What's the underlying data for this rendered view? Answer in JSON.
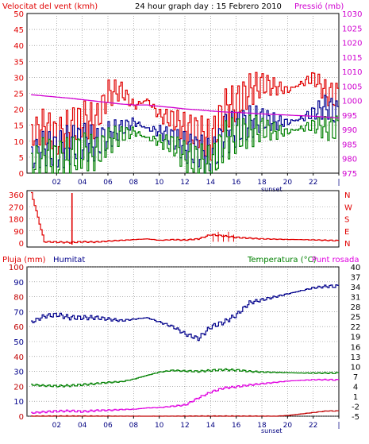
{
  "colors": {
    "frame": "#000000",
    "grid": "#7f7f7f",
    "wind": "#e00000",
    "pressure": "#d000d0",
    "gust_avg": "#000090",
    "green": "#008000",
    "rain": "#c00000",
    "humidity": "#00008b",
    "temperature": "#008000",
    "dewpoint": "#e000e0",
    "blue_text": "#00008b"
  },
  "header": {
    "wind_label": "Velocitat del vent (kmh)",
    "title": "24 hour graph day : 15 Febrero 2010",
    "pressure_label": "Pressió (mb)"
  },
  "time_axis": {
    "ticks": [
      "02",
      "04",
      "06",
      "08",
      "10",
      "12",
      "14",
      "16",
      "18",
      "20",
      "22",
      "|"
    ],
    "sunset_label": "sunset"
  },
  "direction_labels": {
    "left": [
      "360",
      "270",
      "180",
      "90",
      "0"
    ],
    "right": [
      "N",
      "W",
      "S",
      "E",
      "N"
    ]
  },
  "bottom_header": {
    "rain_label": "Pluja (mm)",
    "humidity_label": "Humitat",
    "temperature_label": "Temperatura (°C)",
    "dewpoint_label": "Punt rosada"
  },
  "chart_data": [
    {
      "type": "line",
      "title": "24 hour graph day : 15 Febrero 2010",
      "x": [
        0,
        1,
        2,
        3,
        4,
        5,
        6,
        7,
        8,
        9,
        10,
        11,
        12,
        13,
        14,
        15,
        16,
        17,
        18,
        19,
        20,
        21,
        22,
        23,
        24
      ],
      "y_left": {
        "label": "Velocitat del vent (kmh)",
        "ticks": [
          0,
          5,
          10,
          15,
          20,
          25,
          30,
          35,
          40,
          45,
          50
        ],
        "range": [
          0,
          50
        ]
      },
      "y_right": {
        "label": "Pressió (mb)",
        "ticks": [
          975,
          980,
          985,
          990,
          995,
          1000,
          1005,
          1010,
          1015,
          1020,
          1025,
          1030
        ],
        "range": [
          975,
          1030
        ]
      },
      "series": [
        {
          "name": "Velocitat del vent (kmh)",
          "color": "#e00000",
          "axis": "left",
          "values": [
            12,
            15,
            11,
            14,
            17,
            16,
            25,
            26,
            21,
            23,
            18,
            17,
            14,
            13,
            10,
            20,
            22,
            26,
            28,
            27,
            26,
            28,
            30,
            25,
            24
          ]
        },
        {
          "color": "#000090",
          "axis": "left",
          "values": [
            5,
            8,
            7,
            9,
            10,
            9,
            12,
            14,
            16,
            14,
            13,
            11,
            8,
            7,
            4,
            12,
            14,
            16,
            17,
            16,
            16,
            17,
            19,
            21,
            18
          ]
        },
        {
          "color": "#008000",
          "axis": "left",
          "values": [
            3,
            6,
            4,
            5,
            7,
            6,
            10,
            12,
            13,
            11,
            10,
            9,
            5,
            4,
            2,
            10,
            12,
            13,
            14,
            13,
            13,
            14,
            15,
            14,
            14
          ]
        },
        {
          "name": "Pressió (mb)",
          "color": "#d000d0",
          "axis": "right",
          "values": [
            1002,
            1001.6,
            1001.2,
            1000.8,
            1000.3,
            999.8,
            999.3,
            998.8,
            998.5,
            998.5,
            998,
            997.6,
            997.1,
            996.8,
            996.4,
            996.1,
            995.9,
            995.7,
            995.4,
            995.2,
            995,
            994.8,
            994.6,
            994.3,
            994
          ]
        }
      ]
    },
    {
      "type": "line",
      "x": [
        0,
        1,
        2,
        3,
        4,
        5,
        6,
        7,
        8,
        9,
        10,
        11,
        12,
        13,
        14,
        15,
        16,
        17,
        18,
        19,
        20,
        21,
        22,
        23,
        24
      ],
      "y_left": {
        "ticks": [
          0,
          90,
          180,
          270,
          360
        ],
        "range": [
          0,
          360
        ]
      },
      "y_right": {
        "ticks": [
          "N",
          "W",
          "S",
          "E",
          "N"
        ]
      },
      "series": [
        {
          "color": "#e00000",
          "values": [
            360,
            20,
            18,
            15,
            20,
            18,
            25,
            30,
            35,
            40,
            30,
            35,
            32,
            40,
            70,
            60,
            50,
            45,
            40,
            38,
            36,
            35,
            33,
            30,
            28
          ]
        }
      ]
    },
    {
      "type": "line",
      "x": [
        0,
        1,
        2,
        3,
        4,
        5,
        6,
        7,
        8,
        9,
        10,
        11,
        12,
        13,
        14,
        15,
        16,
        17,
        18,
        19,
        20,
        21,
        22,
        23,
        24
      ],
      "y_left": {
        "label": "Pluja (mm) / Humitat",
        "ticks": [
          0,
          10,
          20,
          30,
          40,
          50,
          60,
          70,
          80,
          90,
          100
        ],
        "range": [
          0,
          100
        ]
      },
      "y_right": {
        "label": "Temperatura (°C) / Punt rosada",
        "ticks": [
          -5,
          -2,
          1,
          4,
          7,
          10,
          13,
          16,
          19,
          22,
          25,
          28,
          31,
          34,
          37,
          40
        ],
        "range": [
          -5,
          40
        ]
      },
      "series": [
        {
          "name": "Humitat",
          "color": "#00008b",
          "axis": "left",
          "values": [
            63,
            67,
            68,
            66,
            66,
            66,
            65,
            64,
            65,
            66,
            63,
            60,
            55,
            52,
            60,
            63,
            68,
            76,
            78,
            80,
            82,
            84,
            86,
            87,
            87
          ]
        },
        {
          "name": "Temperatura (°C)",
          "color": "#008000",
          "axis": "right",
          "values": [
            4.5,
            4.2,
            4.1,
            4.2,
            4.5,
            4.8,
            5.2,
            5.4,
            6.2,
            7.3,
            8.3,
            8.8,
            8.6,
            8.5,
            8.8,
            9.0,
            8.9,
            8.5,
            8.3,
            8.2,
            8.1,
            8.0,
            8.0,
            8.0,
            8.0
          ]
        },
        {
          "name": "Punt rosada",
          "color": "#e000e0",
          "axis": "right",
          "values": [
            -4,
            -3.7,
            -3.5,
            -3.4,
            -3.6,
            -3.3,
            -3.2,
            -3,
            -2.9,
            -2.5,
            -2.4,
            -2,
            -1.6,
            0.5,
            2.3,
            3.5,
            3.9,
            4.4,
            4.8,
            5.2,
            5.6,
            5.8,
            6.0,
            6.0,
            5.9
          ]
        },
        {
          "name": "Pluja (mm)",
          "color": "#c00000",
          "axis": "left",
          "values": [
            0,
            0,
            0,
            0,
            0,
            0,
            0,
            0,
            0,
            0,
            0,
            0,
            0,
            0,
            0,
            0,
            0,
            0,
            0,
            0,
            0.5,
            1.5,
            2.5,
            3.5,
            3.5
          ]
        }
      ]
    }
  ]
}
